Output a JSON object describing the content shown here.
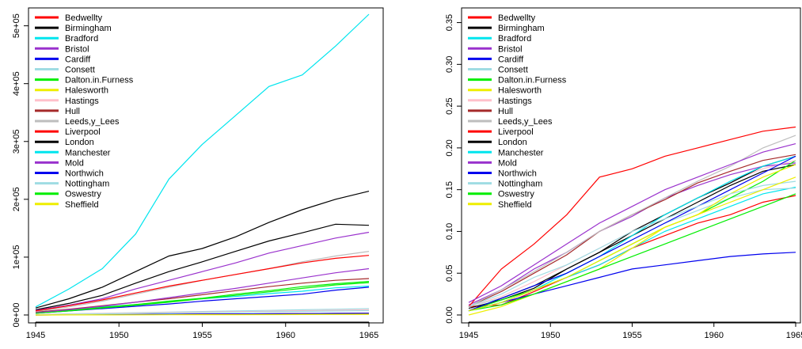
{
  "chart_data": [
    {
      "type": "line",
      "title": "",
      "xlabel": "",
      "ylabel": "",
      "xlim": [
        1945,
        1965
      ],
      "ylim": [
        0,
        520000
      ],
      "grid": false,
      "legend_position": "top-left",
      "x_ticks": [
        1945,
        1950,
        1955,
        1960,
        1965
      ],
      "x_tick_labels": [
        "1945",
        "1950",
        "1955",
        "1960",
        "1965"
      ],
      "y_ticks": [
        0,
        100000,
        200000,
        300000,
        400000,
        500000
      ],
      "y_tick_labels": [
        "0e+00",
        "1e+05",
        "2e+05",
        "3e+05",
        "4e+05",
        "5e+05"
      ],
      "x": [
        1945,
        1947,
        1949,
        1951,
        1953,
        1955,
        1957,
        1959,
        1961,
        1963,
        1965
      ],
      "series": [
        {
          "name": "Bedwellty",
          "color": "#ff0000",
          "values": [
            0,
            300,
            600,
            900,
            1200,
            1500,
            1800,
            2100,
            2400,
            2700,
            3000
          ]
        },
        {
          "name": "Birmingham",
          "color": "#000000",
          "values": [
            9000,
            20000,
            34000,
            55000,
            75000,
            92000,
            110000,
            128000,
            142000,
            157000,
            155000
          ]
        },
        {
          "name": "Bradford",
          "color": "#00e5ee",
          "values": [
            5000,
            9000,
            14000,
            18000,
            23000,
            28000,
            32000,
            37000,
            41000,
            47000,
            50000
          ]
        },
        {
          "name": "Bristol",
          "color": "#9a32cd",
          "values": [
            8000,
            17000,
            28000,
            45000,
            60000,
            75000,
            90000,
            107000,
            120000,
            133000,
            143000
          ]
        },
        {
          "name": "Cardiff",
          "color": "#0000ee",
          "values": [
            3000,
            7000,
            11000,
            15000,
            19000,
            24000,
            28000,
            32000,
            36000,
            43000,
            48000
          ]
        },
        {
          "name": "Consett",
          "color": "#9fdce3",
          "values": [
            1000,
            2000,
            3000,
            4000,
            5000,
            6000,
            7000,
            8000,
            9000,
            10000,
            11000
          ]
        },
        {
          "name": "Dalton.in.Furness",
          "color": "#00ee00",
          "values": [
            4000,
            8000,
            13000,
            18000,
            24000,
            29000,
            36000,
            42000,
            49000,
            54000,
            58000
          ]
        },
        {
          "name": "Halesworth",
          "color": "#eeee00",
          "values": [
            0,
            200,
            400,
            600,
            800,
            1000,
            1200,
            1400,
            1600,
            1800,
            2000
          ]
        },
        {
          "name": "Hastings",
          "color": "#ffc0cb",
          "values": [
            1000,
            1800,
            2600,
            3400,
            4200,
            5000,
            5800,
            6600,
            7400,
            8200,
            9000
          ]
        },
        {
          "name": "Hull",
          "color": "#a52a2a",
          "values": [
            5000,
            10000,
            16000,
            22000,
            28000,
            35000,
            42000,
            49000,
            55000,
            60000,
            63000
          ]
        },
        {
          "name": "Leeds,y_Lees",
          "color": "#bebebe",
          "values": [
            6000,
            14000,
            24000,
            36000,
            48000,
            60000,
            70000,
            80000,
            92000,
            102000,
            110000
          ]
        },
        {
          "name": "Liverpool",
          "color": "#ff0000",
          "values": [
            7000,
            16000,
            26000,
            38000,
            50000,
            60000,
            70000,
            80000,
            90000,
            98000,
            103000
          ]
        },
        {
          "name": "London",
          "color": "#000000",
          "values": [
            12000,
            28000,
            48000,
            75000,
            102000,
            115000,
            135000,
            160000,
            182000,
            200000,
            214000
          ]
        },
        {
          "name": "Manchester",
          "color": "#00e5ee",
          "values": [
            14000,
            45000,
            80000,
            140000,
            235000,
            295000,
            345000,
            395000,
            415000,
            465000,
            520000
          ]
        },
        {
          "name": "Mold",
          "color": "#9a32cd",
          "values": [
            4000,
            9000,
            15000,
            22000,
            30000,
            38000,
            46000,
            55000,
            64000,
            73000,
            80000
          ]
        },
        {
          "name": "Northwich",
          "color": "#0000ee",
          "values": [
            0,
            300,
            600,
            900,
            1200,
            1500,
            1800,
            2100,
            2400,
            2700,
            3000
          ]
        },
        {
          "name": "Nottingham",
          "color": "#9fdce3",
          "values": [
            500,
            1200,
            1900,
            2600,
            3300,
            4000,
            4700,
            5400,
            6100,
            6800,
            7500
          ]
        },
        {
          "name": "Oswestry",
          "color": "#00ee00",
          "values": [
            3000,
            7000,
            12000,
            17000,
            22000,
            28000,
            34000,
            40000,
            46000,
            52000,
            56000
          ]
        },
        {
          "name": "Sheffield",
          "color": "#eeee00",
          "values": [
            0,
            100,
            200,
            300,
            400,
            500,
            600,
            700,
            800,
            900,
            1000
          ]
        }
      ]
    },
    {
      "type": "line",
      "title": "",
      "xlabel": "",
      "ylabel": "",
      "xlim": [
        1945,
        1965
      ],
      "ylim": [
        0,
        0.36
      ],
      "grid": false,
      "legend_position": "top-left",
      "x_ticks": [
        1945,
        1950,
        1955,
        1960,
        1965
      ],
      "x_tick_labels": [
        "1945",
        "1950",
        "1955",
        "1960",
        "1965"
      ],
      "y_ticks": [
        0,
        0.05,
        0.1,
        0.15,
        0.2,
        0.25,
        0.3,
        0.35
      ],
      "y_tick_labels": [
        "0.00",
        "0.05",
        "0.10",
        "0.15",
        "0.20",
        "0.25",
        "0.30",
        "0.35"
      ],
      "x": [
        1945,
        1947,
        1949,
        1951,
        1953,
        1955,
        1957,
        1959,
        1961,
        1963,
        1965
      ],
      "series": [
        {
          "name": "Bedwellty",
          "color": "#ff0000",
          "values": [
            0.01,
            0.012,
            0.028,
            0.045,
            0.06,
            0.08,
            0.095,
            0.11,
            0.12,
            0.135,
            0.143
          ]
        },
        {
          "name": "Birmingham",
          "color": "#000000",
          "values": [
            0.008,
            0.018,
            0.032,
            0.055,
            0.075,
            0.095,
            0.115,
            0.135,
            0.155,
            0.172,
            0.18
          ]
        },
        {
          "name": "Bradford",
          "color": "#00e5ee",
          "values": [
            0.005,
            0.015,
            0.03,
            0.045,
            0.06,
            0.08,
            0.1,
            0.115,
            0.13,
            0.145,
            0.153
          ]
        },
        {
          "name": "Bristol",
          "color": "#9a32cd",
          "values": [
            0.012,
            0.03,
            0.055,
            0.075,
            0.1,
            0.118,
            0.14,
            0.155,
            0.168,
            0.178,
            0.182
          ]
        },
        {
          "name": "Cardiff",
          "color": "#0000ee",
          "values": [
            0.005,
            0.015,
            0.025,
            0.035,
            0.045,
            0.055,
            0.06,
            0.065,
            0.07,
            0.073,
            0.075
          ]
        },
        {
          "name": "Consett",
          "color": "#9fdce3",
          "values": [
            0.01,
            0.02,
            0.035,
            0.05,
            0.07,
            0.09,
            0.11,
            0.125,
            0.14,
            0.15,
            0.152
          ]
        },
        {
          "name": "Dalton.in.Furness",
          "color": "#00ee00",
          "values": [
            0.005,
            0.018,
            0.03,
            0.045,
            0.065,
            0.085,
            0.105,
            0.12,
            0.14,
            0.16,
            0.185
          ]
        },
        {
          "name": "Halesworth",
          "color": "#eeee00",
          "values": [
            0,
            0.01,
            0.025,
            0.04,
            0.055,
            0.08,
            0.105,
            0.12,
            0.145,
            0.165,
            0.18
          ]
        },
        {
          "name": "Hastings",
          "color": "#ffc0cb",
          "values": [
            0.01,
            0.022,
            0.04,
            0.06,
            0.08,
            0.1,
            0.12,
            0.14,
            0.16,
            0.175,
            0.185
          ]
        },
        {
          "name": "Hull",
          "color": "#a52a2a",
          "values": [
            0.01,
            0.028,
            0.05,
            0.072,
            0.1,
            0.12,
            0.138,
            0.158,
            0.172,
            0.185,
            0.192
          ]
        },
        {
          "name": "Leeds,y_Lees",
          "color": "#bebebe",
          "values": [
            0.01,
            0.03,
            0.052,
            0.075,
            0.1,
            0.12,
            0.14,
            0.16,
            0.178,
            0.2,
            0.215
          ]
        },
        {
          "name": "Liverpool",
          "color": "#ff0000",
          "values": [
            0.01,
            0.055,
            0.085,
            0.12,
            0.165,
            0.175,
            0.19,
            0.2,
            0.21,
            0.22,
            0.225
          ]
        },
        {
          "name": "London",
          "color": "#000000",
          "values": [
            0.005,
            0.02,
            0.035,
            0.055,
            0.075,
            0.1,
            0.12,
            0.14,
            0.158,
            0.178,
            0.19
          ]
        },
        {
          "name": "Manchester",
          "color": "#00e5ee",
          "values": [
            0.005,
            0.015,
            0.03,
            0.05,
            0.07,
            0.095,
            0.12,
            0.14,
            0.16,
            0.178,
            0.19
          ]
        },
        {
          "name": "Mold",
          "color": "#9a32cd",
          "values": [
            0.015,
            0.035,
            0.06,
            0.085,
            0.11,
            0.13,
            0.15,
            0.165,
            0.18,
            0.195,
            0.205
          ]
        },
        {
          "name": "Northwich",
          "color": "#0000ee",
          "values": [
            0.005,
            0.02,
            0.035,
            0.05,
            0.07,
            0.09,
            0.11,
            0.13,
            0.15,
            0.17,
            0.19
          ]
        },
        {
          "name": "Nottingham",
          "color": "#9fdce3",
          "values": [
            0.01,
            0.025,
            0.045,
            0.06,
            0.08,
            0.1,
            0.115,
            0.13,
            0.145,
            0.155,
            0.16
          ]
        },
        {
          "name": "Oswestry",
          "color": "#00ee00",
          "values": [
            0.005,
            0.012,
            0.025,
            0.04,
            0.055,
            0.07,
            0.085,
            0.1,
            0.115,
            0.13,
            0.145
          ]
        },
        {
          "name": "Sheffield",
          "color": "#eeee00",
          "values": [
            0.005,
            0.015,
            0.03,
            0.045,
            0.065,
            0.085,
            0.105,
            0.12,
            0.135,
            0.15,
            0.165
          ]
        }
      ]
    }
  ]
}
